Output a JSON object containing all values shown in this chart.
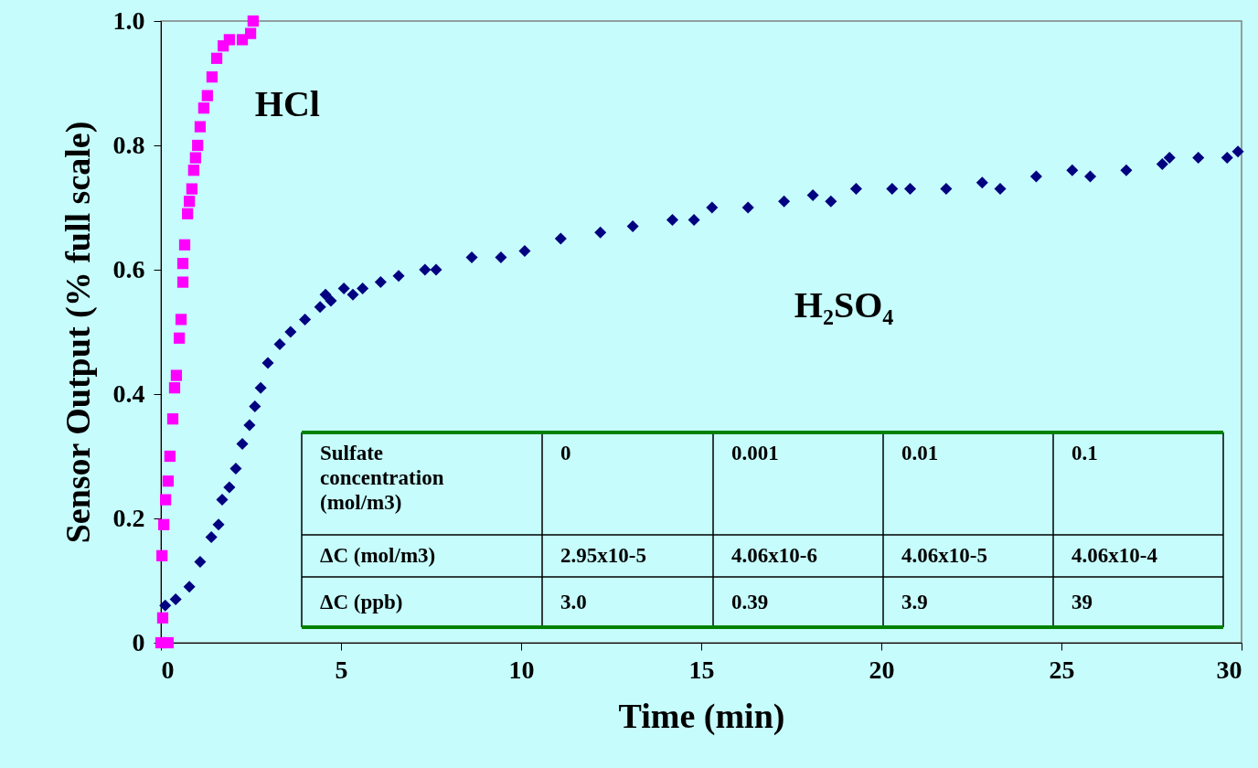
{
  "chart_data": {
    "type": "scatter",
    "xlabel": "Time (min)",
    "ylabel": "Sensor Output (% full scale)",
    "xlim": [
      0,
      30
    ],
    "xticks": [
      0,
      5,
      10,
      15,
      20,
      25,
      30
    ],
    "ylim": [
      0,
      1
    ],
    "yticks": [
      0,
      0.2,
      0.4,
      0.6,
      0.8,
      {
        "value": 1,
        "label": "1.0"
      }
    ],
    "grid": false,
    "legend": false,
    "series": [
      {
        "name": "HCl",
        "color": "#ff00ff",
        "marker": "square",
        "x": [
          0.0,
          0.2,
          0.05,
          0.03,
          0.08,
          0.13,
          0.2,
          0.25,
          0.33,
          0.38,
          0.43,
          0.51,
          0.56,
          0.61,
          0.61,
          0.66,
          0.74,
          0.79,
          0.86,
          0.91,
          0.96,
          1.02,
          1.09,
          1.19,
          1.29,
          1.42,
          1.55,
          1.73,
          1.9,
          2.26,
          2.49,
          2.56
        ],
        "values": [
          0.0,
          0.0,
          0.04,
          0.14,
          0.19,
          0.23,
          0.26,
          0.3,
          0.36,
          0.41,
          0.43,
          0.49,
          0.52,
          0.58,
          0.61,
          0.64,
          0.69,
          0.71,
          0.73,
          0.76,
          0.78,
          0.8,
          0.83,
          0.86,
          0.88,
          0.91,
          0.94,
          0.96,
          0.97,
          0.97,
          0.98,
          1.0
        ]
      },
      {
        "name": "H₂SO₄",
        "color": "#000080",
        "marker": "diamond",
        "x": [
          0.12,
          0.41,
          0.79,
          1.09,
          1.4,
          1.6,
          1.7,
          1.9,
          2.08,
          2.26,
          2.46,
          2.61,
          2.77,
          2.97,
          3.3,
          3.6,
          4.0,
          4.42,
          4.57,
          4.72,
          5.08,
          5.33,
          5.6,
          6.1,
          6.6,
          7.33,
          7.64,
          8.63,
          9.44,
          10.1,
          11.1,
          12.2,
          13.1,
          14.2,
          14.8,
          15.3,
          16.3,
          17.3,
          18.1,
          18.6,
          19.3,
          20.3,
          20.8,
          21.8,
          22.8,
          23.3,
          24.3,
          25.3,
          25.8,
          26.8,
          27.8,
          28.0,
          28.8,
          29.6,
          29.9
        ],
        "values": [
          0.06,
          0.07,
          0.09,
          0.13,
          0.17,
          0.19,
          0.23,
          0.25,
          0.28,
          0.32,
          0.35,
          0.38,
          0.41,
          0.45,
          0.48,
          0.5,
          0.52,
          0.54,
          0.56,
          0.55,
          0.57,
          0.56,
          0.57,
          0.58,
          0.59,
          0.6,
          0.6,
          0.62,
          0.62,
          0.63,
          0.65,
          0.66,
          0.67,
          0.68,
          0.68,
          0.7,
          0.7,
          0.71,
          0.72,
          0.71,
          0.73,
          0.73,
          0.73,
          0.73,
          0.74,
          0.73,
          0.75,
          0.76,
          0.75,
          0.76,
          0.77,
          0.78,
          0.78,
          0.78,
          0.79
        ]
      }
    ],
    "annotations": [
      "Sulfate\nconcentration\n(mol/m3)",
      "0",
      "0.001",
      "0.01",
      "0.1",
      "ΔC (mol/m3)",
      "2.95x10-5",
      "4.06x10-6",
      "4.06x10-5",
      "4.06x10-4",
      "ΔC (ppb)",
      "3.0",
      "0.39",
      "3.9",
      "39"
    ]
  }
}
